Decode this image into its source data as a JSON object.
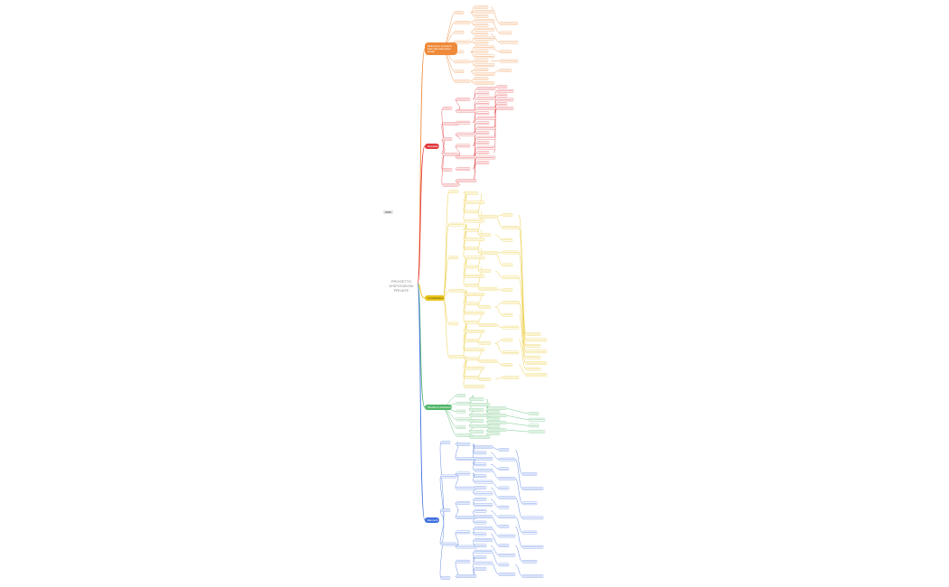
{
  "root": {
    "title_lines": [
      "PROGETTO",
      "DISPOSIZIONI",
      "PRIVATE"
    ]
  },
  "floating_label": "xxxx",
  "branches": [
    {
      "name": "orange",
      "color": "#ef8a3a",
      "label": "Definizioni e concetti di base sulle disposizioni private"
    },
    {
      "name": "red",
      "color": "#e2393e",
      "label": "Disciplina"
    },
    {
      "name": "yellow",
      "color": "#e8c31c",
      "label": "Cumulazione"
    },
    {
      "name": "green",
      "color": "#52b76a",
      "label": "Modelli di distribuzione"
    },
    {
      "name": "blue",
      "color": "#3f6fe0",
      "label": "Elementi"
    }
  ],
  "colors": {
    "root_text": "#8a8a8a",
    "background": "#ffffff"
  }
}
